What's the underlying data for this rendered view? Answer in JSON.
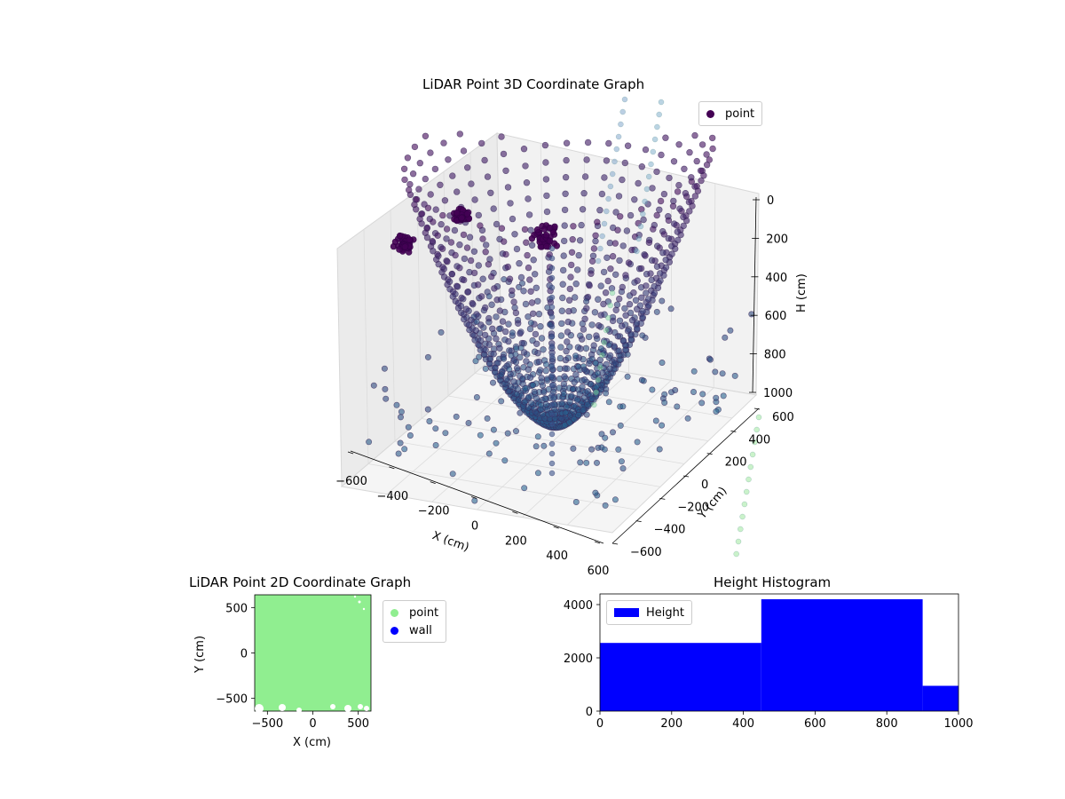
{
  "chart_data": [
    {
      "type": "scatter",
      "title": "LiDAR Point 3D Coordinate Graph",
      "xlabel": "X (cm)",
      "ylabel": "Y (cm)",
      "zlabel": "H (cm)",
      "x_ticks": [
        "−600",
        "−400",
        "−200",
        "0",
        "200",
        "400",
        "600"
      ],
      "y_ticks": [
        "−600",
        "−400",
        "−200",
        "0",
        "200",
        "400",
        "600"
      ],
      "z_ticks": [
        "0",
        "200",
        "400",
        "600",
        "800",
        "1000"
      ],
      "xlim": [
        -600,
        600
      ],
      "ylim": [
        -600,
        600
      ],
      "zlim": [
        0,
        1000
      ],
      "z_inverted": true,
      "legend": [
        "point"
      ],
      "legend_position": "top-right",
      "colormap": "viridis",
      "grid": true
    },
    {
      "type": "scatter",
      "title": "LiDAR Point 2D Coordinate Graph",
      "xlabel": "X (cm)",
      "ylabel": "Y (cm)",
      "x_ticks": [
        "−500",
        "0",
        "500"
      ],
      "y_ticks": [
        "500",
        "0",
        "−500"
      ],
      "xlim": [
        -640,
        640
      ],
      "ylim": [
        -640,
        640
      ],
      "series": [
        {
          "name": "point",
          "color": "#90ee90"
        },
        {
          "name": "wall",
          "color": "#0000ff"
        }
      ],
      "legend_position": "outside-right"
    },
    {
      "type": "bar",
      "title": "Height Histogram",
      "bins": [
        [
          0,
          450
        ],
        [
          450,
          900
        ],
        [
          900,
          1000
        ]
      ],
      "values": [
        2560,
        4200,
        950
      ],
      "series_name": "Height",
      "color": "#0000ff",
      "x_ticks": [
        "0",
        "200",
        "400",
        "600",
        "800",
        "1000"
      ],
      "y_ticks": [
        "0",
        "2000",
        "4000"
      ],
      "xlim": [
        0,
        1000
      ],
      "ylim": [
        0,
        4400
      ],
      "legend_position": "top-left"
    }
  ]
}
